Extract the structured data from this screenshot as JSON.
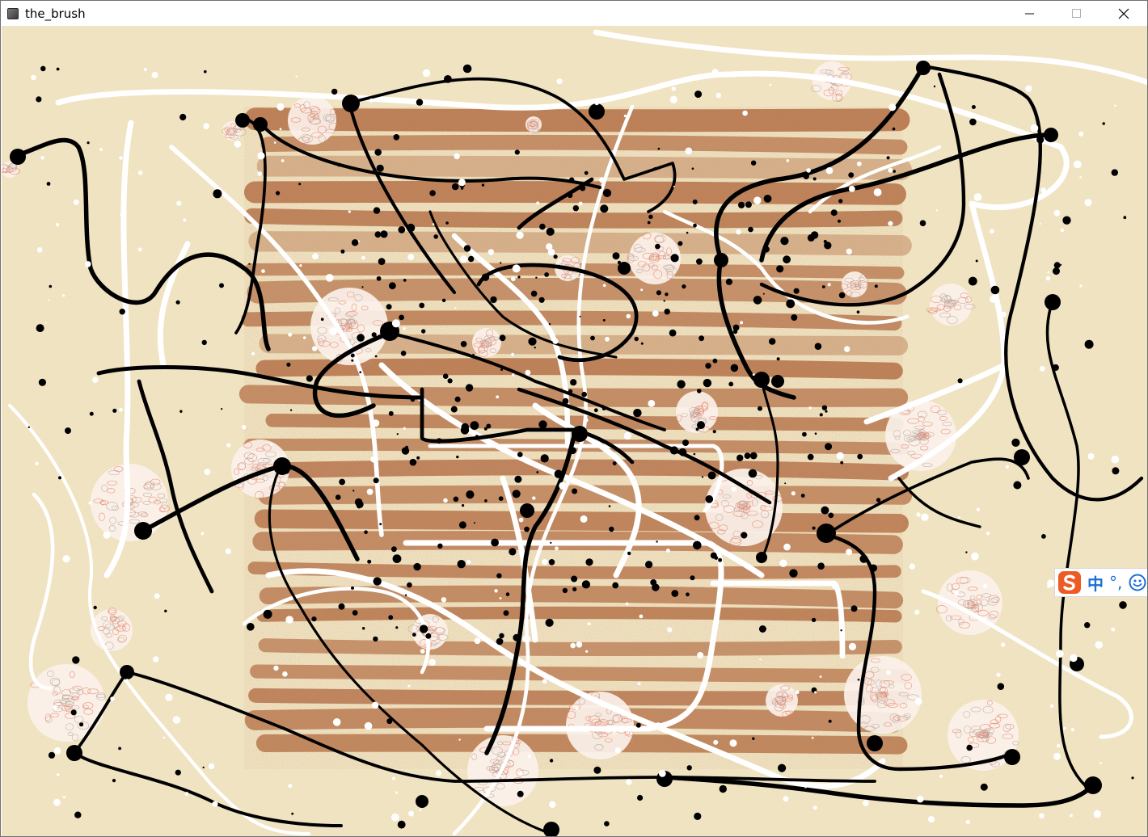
{
  "window": {
    "title": "the_brush",
    "controls": {
      "minimize": "minimize-icon",
      "maximize": "maximize-icon",
      "close": "close-icon"
    }
  },
  "canvas": {
    "background_color": "#f0e3c2",
    "smear_color": "#b6734a",
    "paint_colors": [
      "#000000",
      "#ffffff",
      "#b6734a",
      "#e8846a"
    ]
  },
  "ime": {
    "logo": "sogou-s-icon",
    "mode": "中",
    "punct": "°,",
    "emoji": "smiley-icon"
  }
}
